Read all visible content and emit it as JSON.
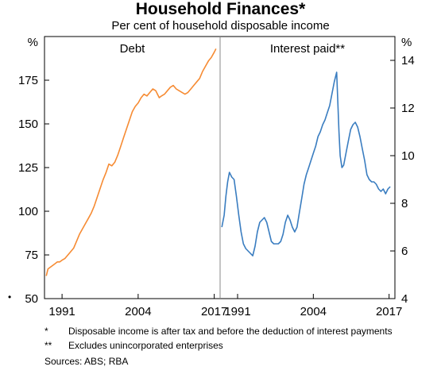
{
  "title": "Household Finances*",
  "subtitle": "Per cent of household disposable income",
  "bullet": "•",
  "footnotes": [
    {
      "mark": "*",
      "text": "Disposable income is after tax and before the deduction of interest payments"
    },
    {
      "mark": "**",
      "text": "Excludes unincorporated enterprises"
    }
  ],
  "sources": "Sources: ABS; RBA",
  "colors": {
    "debt": "#F68B33",
    "interest": "#3A7DC0",
    "axis": "#000000",
    "divider": "#888888"
  },
  "chart_data": [
    {
      "type": "line",
      "panel_title": "Debt",
      "unit_label": "%",
      "ylim": [
        50,
        200
      ],
      "yticks": [
        50,
        75,
        100,
        125,
        150,
        175
      ],
      "xlim": [
        1988,
        2018
      ],
      "xticks": [
        1991,
        2004,
        2017
      ],
      "series": [
        {
          "x": [
            1988.3,
            1988.6,
            1989,
            1989.4,
            1989.8,
            1990.2,
            1990.6,
            1991,
            1991.5,
            1992,
            1992.5,
            1993,
            1993.5,
            1994,
            1994.5,
            1995,
            1995.5,
            1996,
            1996.5,
            1997,
            1997.5,
            1998,
            1998.5,
            1999,
            1999.5,
            2000,
            2000.5,
            2001,
            2001.5,
            2002,
            2002.5,
            2003,
            2003.5,
            2004,
            2004.5,
            2005,
            2005.5,
            2006,
            2006.5,
            2007,
            2007.3,
            2007.6,
            2008,
            2008.5,
            2009,
            2009.5,
            2010,
            2010.5,
            2011,
            2011.5,
            2012,
            2012.5,
            2013,
            2013.5,
            2014,
            2014.5,
            2015,
            2015.5,
            2016,
            2016.5,
            2017,
            2017.3
          ],
          "y": [
            63,
            67,
            68,
            69,
            70,
            71,
            71,
            72,
            73,
            75,
            77,
            79,
            83,
            87,
            90,
            93,
            96,
            99,
            103,
            108,
            113,
            118,
            122,
            127,
            126,
            128,
            132,
            137,
            142,
            147,
            152,
            157,
            160,
            162,
            165,
            167,
            166,
            168,
            170,
            169,
            167,
            165,
            166,
            167,
            169,
            171,
            172,
            170,
            169,
            168,
            167,
            168,
            170,
            172,
            174,
            176,
            180,
            183,
            186,
            188,
            191,
            193
          ]
        }
      ]
    },
    {
      "type": "line",
      "panel_title": "Interest paid**",
      "unit_label": "%",
      "ylim": [
        4,
        15
      ],
      "yticks": [
        4,
        6,
        8,
        10,
        12,
        14
      ],
      "xlim": [
        1988,
        2018
      ],
      "xticks": [
        1991,
        2017
      ],
      "series": [
        {
          "x": [
            1988.3,
            1988.7,
            1989,
            1989.3,
            1989.6,
            1990,
            1990.4,
            1990.8,
            1991.2,
            1991.6,
            1992,
            1992.4,
            1992.8,
            1993.2,
            1993.6,
            1994,
            1994.4,
            1994.8,
            1995.2,
            1995.6,
            1996,
            1996.4,
            1996.8,
            1997.2,
            1997.6,
            1998,
            1998.4,
            1998.8,
            1999.2,
            1999.6,
            2000,
            2000.4,
            2000.8,
            2001.2,
            2001.6,
            2002,
            2002.4,
            2002.8,
            2003.2,
            2003.6,
            2004,
            2004.4,
            2004.8,
            2005.2,
            2005.6,
            2006,
            2006.4,
            2006.8,
            2007.2,
            2007.6,
            2008,
            2008.4,
            2008.6,
            2008.9,
            2009.2,
            2009.6,
            2010,
            2010.4,
            2010.8,
            2011.2,
            2011.6,
            2012,
            2012.4,
            2012.8,
            2013.2,
            2013.6,
            2014,
            2014.4,
            2014.8,
            2015.2,
            2015.6,
            2016,
            2016.4,
            2016.8,
            2017.2
          ],
          "y": [
            7.0,
            7.5,
            8.3,
            8.9,
            9.3,
            9.1,
            9.0,
            8.3,
            7.5,
            6.8,
            6.3,
            6.1,
            6.0,
            5.9,
            5.8,
            6.2,
            6.8,
            7.2,
            7.3,
            7.4,
            7.2,
            6.8,
            6.4,
            6.3,
            6.3,
            6.3,
            6.4,
            6.7,
            7.2,
            7.5,
            7.3,
            7.0,
            6.8,
            7.0,
            7.6,
            8.2,
            8.8,
            9.2,
            9.5,
            9.8,
            10.1,
            10.4,
            10.8,
            11.0,
            11.3,
            11.5,
            11.8,
            12.1,
            12.6,
            13.1,
            13.5,
            11.0,
            10.0,
            9.5,
            9.6,
            10.1,
            10.6,
            11.1,
            11.3,
            11.4,
            11.2,
            10.8,
            10.3,
            9.8,
            9.2,
            9.0,
            8.9,
            8.9,
            8.8,
            8.6,
            8.5,
            8.6,
            8.4,
            8.6,
            8.7
          ]
        }
      ]
    }
  ]
}
